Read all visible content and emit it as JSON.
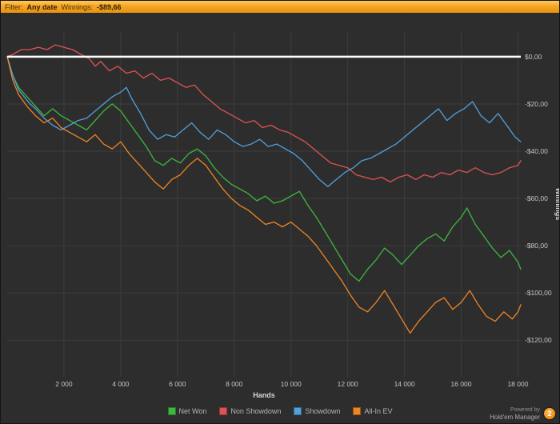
{
  "topbar": {
    "filter_label": "Filter:",
    "filter_value": "Any date",
    "winnings_label": "Winnings:",
    "winnings_value": "-$89,66"
  },
  "footer": {
    "powered_by": "Powered by",
    "brand": "Hold'em Manager",
    "brand_badge": "2"
  },
  "colors": {
    "background": "#2d2d2d",
    "grid": "#3d3d3d",
    "zero_line": "#ffffff",
    "axis_text": "#c4c4c4",
    "axis_label_text": "#d6d6d6"
  },
  "chart_data": {
    "type": "line",
    "title": "",
    "xlabel": "Hands",
    "ylabel": "Winnings",
    "xlim": [
      0,
      18100
    ],
    "ylim": [
      -135.5,
      10.8
    ],
    "grid": true,
    "legend_position": "bottom",
    "zero_line": 0,
    "x_ticks": [
      {
        "value": 2000,
        "label": "2 000"
      },
      {
        "value": 4000,
        "label": "4 000"
      },
      {
        "value": 6000,
        "label": "6 000"
      },
      {
        "value": 8000,
        "label": "8 000"
      },
      {
        "value": 10000,
        "label": "10 000"
      },
      {
        "value": 12000,
        "label": "12 000"
      },
      {
        "value": 14000,
        "label": "14 000"
      },
      {
        "value": 16000,
        "label": "16 000"
      },
      {
        "value": 18000,
        "label": "18 000"
      }
    ],
    "y_ticks": [
      {
        "value": 0,
        "label": "$0,00"
      },
      {
        "value": -20,
        "label": "-$20,00"
      },
      {
        "value": -40,
        "label": "-$40,00"
      },
      {
        "value": -60,
        "label": "-$60,00"
      },
      {
        "value": -80,
        "label": "-$80,00"
      },
      {
        "value": -100,
        "label": "-$100,00"
      },
      {
        "value": -120,
        "label": "-$120,00"
      }
    ],
    "series": [
      {
        "name": "Net Won",
        "color": "#3db83d",
        "points": [
          [
            0,
            0
          ],
          [
            200,
            -8
          ],
          [
            400,
            -13
          ],
          [
            700,
            -17
          ],
          [
            1000,
            -21
          ],
          [
            1300,
            -25
          ],
          [
            1600,
            -22
          ],
          [
            1900,
            -25
          ],
          [
            2200,
            -27
          ],
          [
            2500,
            -29
          ],
          [
            2800,
            -31
          ],
          [
            3100,
            -27
          ],
          [
            3400,
            -23
          ],
          [
            3700,
            -20
          ],
          [
            4000,
            -23
          ],
          [
            4300,
            -28
          ],
          [
            4600,
            -33
          ],
          [
            4900,
            -38
          ],
          [
            5200,
            -44
          ],
          [
            5500,
            -46
          ],
          [
            5800,
            -43
          ],
          [
            6100,
            -45
          ],
          [
            6400,
            -41
          ],
          [
            6700,
            -39
          ],
          [
            7000,
            -42
          ],
          [
            7300,
            -47
          ],
          [
            7600,
            -51
          ],
          [
            7900,
            -54
          ],
          [
            8200,
            -56
          ],
          [
            8500,
            -58
          ],
          [
            8800,
            -61
          ],
          [
            9100,
            -59
          ],
          [
            9400,
            -62
          ],
          [
            9700,
            -61
          ],
          [
            10000,
            -59
          ],
          [
            10300,
            -57
          ],
          [
            10600,
            -63
          ],
          [
            10900,
            -68
          ],
          [
            11200,
            -74
          ],
          [
            11500,
            -80
          ],
          [
            11800,
            -86
          ],
          [
            12100,
            -92
          ],
          [
            12400,
            -95
          ],
          [
            12700,
            -90
          ],
          [
            13000,
            -86
          ],
          [
            13300,
            -81
          ],
          [
            13600,
            -84
          ],
          [
            13900,
            -88
          ],
          [
            14200,
            -84
          ],
          [
            14500,
            -80
          ],
          [
            14800,
            -77
          ],
          [
            15100,
            -75
          ],
          [
            15400,
            -78
          ],
          [
            15700,
            -72
          ],
          [
            16000,
            -68
          ],
          [
            16200,
            -64
          ],
          [
            16500,
            -71
          ],
          [
            16800,
            -76
          ],
          [
            17100,
            -81
          ],
          [
            17400,
            -85
          ],
          [
            17700,
            -82
          ],
          [
            18000,
            -87
          ],
          [
            18100,
            -90
          ]
        ]
      },
      {
        "name": "Non Showdown",
        "color": "#e05252",
        "points": [
          [
            0,
            0
          ],
          [
            200,
            1
          ],
          [
            500,
            3
          ],
          [
            800,
            3
          ],
          [
            1100,
            4
          ],
          [
            1400,
            3
          ],
          [
            1700,
            5
          ],
          [
            2000,
            4
          ],
          [
            2300,
            3
          ],
          [
            2600,
            1
          ],
          [
            2900,
            -1
          ],
          [
            3100,
            -4
          ],
          [
            3300,
            -2
          ],
          [
            3600,
            -6
          ],
          [
            3900,
            -4
          ],
          [
            4200,
            -7
          ],
          [
            4500,
            -6
          ],
          [
            4800,
            -9
          ],
          [
            5100,
            -7
          ],
          [
            5400,
            -10
          ],
          [
            5700,
            -9
          ],
          [
            6000,
            -11
          ],
          [
            6300,
            -13
          ],
          [
            6600,
            -12
          ],
          [
            6900,
            -16
          ],
          [
            7200,
            -19
          ],
          [
            7500,
            -22
          ],
          [
            7800,
            -24
          ],
          [
            8100,
            -26
          ],
          [
            8400,
            -28
          ],
          [
            8700,
            -27
          ],
          [
            9000,
            -30
          ],
          [
            9300,
            -29
          ],
          [
            9600,
            -31
          ],
          [
            9900,
            -32
          ],
          [
            10200,
            -34
          ],
          [
            10500,
            -36
          ],
          [
            10800,
            -39
          ],
          [
            11100,
            -42
          ],
          [
            11400,
            -45
          ],
          [
            11700,
            -46
          ],
          [
            12000,
            -47
          ],
          [
            12300,
            -50
          ],
          [
            12600,
            -51
          ],
          [
            12900,
            -52
          ],
          [
            13200,
            -51
          ],
          [
            13500,
            -53
          ],
          [
            13800,
            -51
          ],
          [
            14100,
            -50
          ],
          [
            14400,
            -52
          ],
          [
            14700,
            -50
          ],
          [
            15000,
            -51
          ],
          [
            15300,
            -49
          ],
          [
            15600,
            -50
          ],
          [
            15900,
            -48
          ],
          [
            16200,
            -49
          ],
          [
            16500,
            -47
          ],
          [
            16800,
            -49
          ],
          [
            17100,
            -50
          ],
          [
            17400,
            -49
          ],
          [
            17700,
            -47
          ],
          [
            18000,
            -46
          ],
          [
            18100,
            -44
          ]
        ]
      },
      {
        "name": "Showdown",
        "color": "#52a0dc",
        "points": [
          [
            0,
            0
          ],
          [
            200,
            -8
          ],
          [
            400,
            -14
          ],
          [
            600,
            -17
          ],
          [
            800,
            -20
          ],
          [
            1000,
            -22
          ],
          [
            1300,
            -26
          ],
          [
            1600,
            -29
          ],
          [
            1900,
            -31
          ],
          [
            2200,
            -29
          ],
          [
            2500,
            -27
          ],
          [
            2800,
            -26
          ],
          [
            3100,
            -23
          ],
          [
            3400,
            -20
          ],
          [
            3700,
            -17
          ],
          [
            4000,
            -15
          ],
          [
            4200,
            -13
          ],
          [
            4400,
            -18
          ],
          [
            4700,
            -24
          ],
          [
            5000,
            -31
          ],
          [
            5300,
            -35
          ],
          [
            5600,
            -33
          ],
          [
            5900,
            -34
          ],
          [
            6200,
            -31
          ],
          [
            6500,
            -28
          ],
          [
            6800,
            -32
          ],
          [
            7100,
            -35
          ],
          [
            7400,
            -31
          ],
          [
            7700,
            -33
          ],
          [
            8000,
            -36
          ],
          [
            8300,
            -38
          ],
          [
            8600,
            -37
          ],
          [
            8900,
            -35
          ],
          [
            9200,
            -38
          ],
          [
            9500,
            -37
          ],
          [
            9800,
            -39
          ],
          [
            10100,
            -41
          ],
          [
            10400,
            -44
          ],
          [
            10700,
            -48
          ],
          [
            11000,
            -52
          ],
          [
            11300,
            -55
          ],
          [
            11600,
            -52
          ],
          [
            11900,
            -49
          ],
          [
            12200,
            -47
          ],
          [
            12500,
            -44
          ],
          [
            12800,
            -43
          ],
          [
            13100,
            -41
          ],
          [
            13400,
            -39
          ],
          [
            13700,
            -37
          ],
          [
            14000,
            -34
          ],
          [
            14300,
            -31
          ],
          [
            14600,
            -28
          ],
          [
            14900,
            -25
          ],
          [
            15200,
            -22
          ],
          [
            15500,
            -27
          ],
          [
            15800,
            -24
          ],
          [
            16100,
            -22
          ],
          [
            16400,
            -19
          ],
          [
            16700,
            -25
          ],
          [
            17000,
            -28
          ],
          [
            17300,
            -24
          ],
          [
            17600,
            -29
          ],
          [
            17900,
            -34
          ],
          [
            18100,
            -36
          ]
        ]
      },
      {
        "name": "All-In EV",
        "color": "#f08522",
        "points": [
          [
            0,
            0
          ],
          [
            200,
            -10
          ],
          [
            400,
            -16
          ],
          [
            700,
            -21
          ],
          [
            1000,
            -25
          ],
          [
            1300,
            -28
          ],
          [
            1600,
            -26
          ],
          [
            1900,
            -30
          ],
          [
            2200,
            -32
          ],
          [
            2500,
            -34
          ],
          [
            2800,
            -36
          ],
          [
            3100,
            -33
          ],
          [
            3400,
            -37
          ],
          [
            3700,
            -39
          ],
          [
            4000,
            -36
          ],
          [
            4300,
            -41
          ],
          [
            4600,
            -45
          ],
          [
            4900,
            -49
          ],
          [
            5200,
            -53
          ],
          [
            5500,
            -56
          ],
          [
            5800,
            -52
          ],
          [
            6100,
            -50
          ],
          [
            6400,
            -46
          ],
          [
            6700,
            -43
          ],
          [
            7000,
            -46
          ],
          [
            7300,
            -51
          ],
          [
            7600,
            -56
          ],
          [
            7900,
            -60
          ],
          [
            8200,
            -63
          ],
          [
            8500,
            -65
          ],
          [
            8800,
            -68
          ],
          [
            9100,
            -71
          ],
          [
            9400,
            -70
          ],
          [
            9700,
            -72
          ],
          [
            10000,
            -70
          ],
          [
            10300,
            -73
          ],
          [
            10600,
            -76
          ],
          [
            10900,
            -80
          ],
          [
            11200,
            -85
          ],
          [
            11500,
            -90
          ],
          [
            11800,
            -95
          ],
          [
            12100,
            -101
          ],
          [
            12400,
            -106
          ],
          [
            12700,
            -108
          ],
          [
            13000,
            -104
          ],
          [
            13300,
            -99
          ],
          [
            13600,
            -105
          ],
          [
            13900,
            -111
          ],
          [
            14200,
            -117
          ],
          [
            14500,
            -112
          ],
          [
            14800,
            -108
          ],
          [
            15100,
            -104
          ],
          [
            15400,
            -102
          ],
          [
            15700,
            -107
          ],
          [
            16000,
            -104
          ],
          [
            16300,
            -99
          ],
          [
            16600,
            -105
          ],
          [
            16900,
            -110
          ],
          [
            17200,
            -112
          ],
          [
            17500,
            -108
          ],
          [
            17800,
            -111
          ],
          [
            18000,
            -108
          ],
          [
            18100,
            -105
          ]
        ]
      }
    ]
  }
}
